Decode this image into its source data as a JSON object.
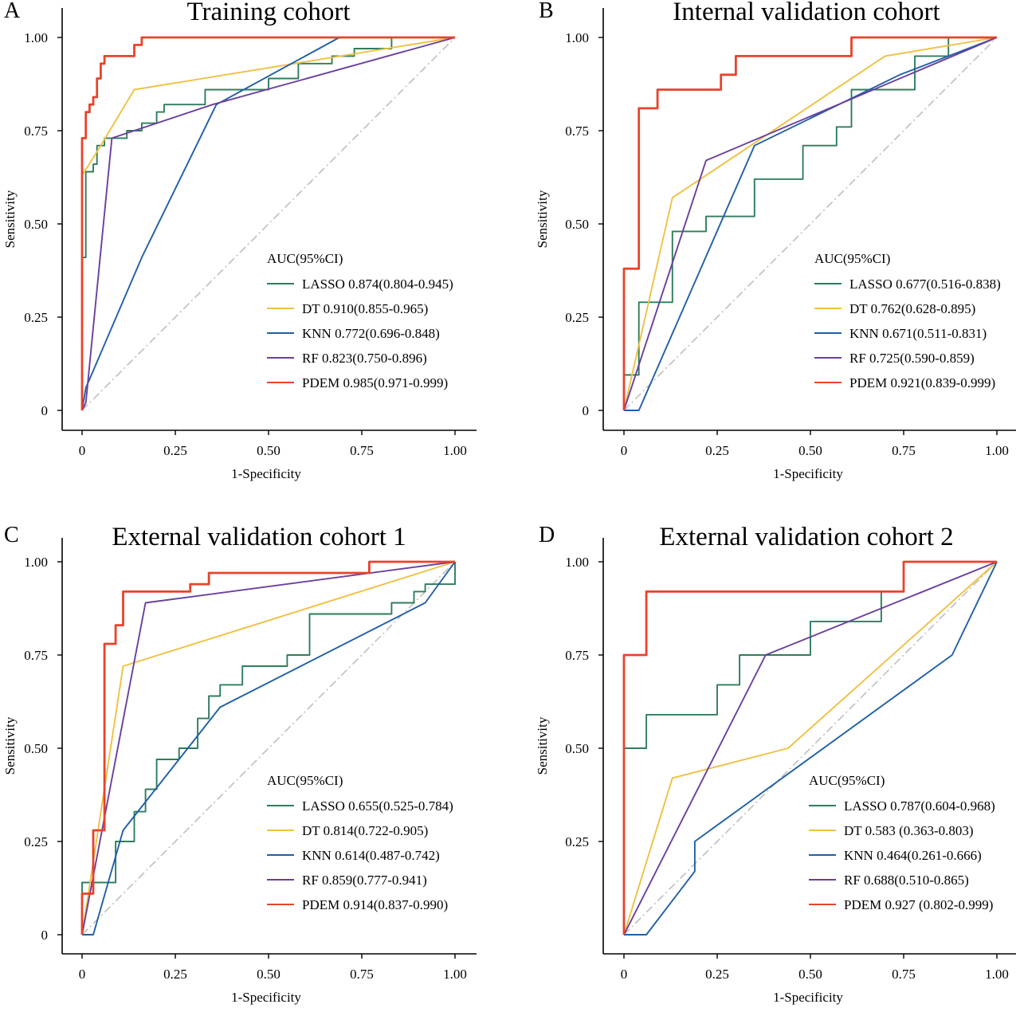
{
  "colors": {
    "LASSO": "#2e7d5b",
    "DT": "#f0c040",
    "KNN": "#1f5fa8",
    "RF": "#6a3fa0",
    "PDEM": "#e8432a",
    "diagonal": "#bbbbbb"
  },
  "chart_data": [
    {
      "type": "line",
      "panel_letter": "A",
      "title": "Training cohort",
      "xlabel": "1-Specificity",
      "ylabel": "Sensitivity",
      "xlim": [
        0,
        1
      ],
      "ylim": [
        0,
        1
      ],
      "x_ticks": [
        "0",
        "0.25",
        "0.50",
        "0.75",
        "1.00"
      ],
      "y_ticks": [
        "0",
        "0.25",
        "0.50",
        "0.75",
        "1.00"
      ],
      "legend_title": "AUC(95%CI)",
      "legend_position": "bottom-right",
      "diagonal": true,
      "series": [
        {
          "name": "LASSO",
          "label": "LASSO 0.874(0.804-0.945)",
          "step": true,
          "points": [
            [
              0,
              0
            ],
            [
              0,
              0.41
            ],
            [
              0.01,
              0.41
            ],
            [
              0.01,
              0.64
            ],
            [
              0.03,
              0.64
            ],
            [
              0.03,
              0.66
            ],
            [
              0.04,
              0.66
            ],
            [
              0.04,
              0.71
            ],
            [
              0.06,
              0.71
            ],
            [
              0.06,
              0.73
            ],
            [
              0.12,
              0.73
            ],
            [
              0.12,
              0.75
            ],
            [
              0.16,
              0.75
            ],
            [
              0.16,
              0.77
            ],
            [
              0.2,
              0.77
            ],
            [
              0.2,
              0.8
            ],
            [
              0.22,
              0.8
            ],
            [
              0.22,
              0.82
            ],
            [
              0.33,
              0.82
            ],
            [
              0.33,
              0.86
            ],
            [
              0.5,
              0.86
            ],
            [
              0.5,
              0.89
            ],
            [
              0.58,
              0.89
            ],
            [
              0.58,
              0.93
            ],
            [
              0.67,
              0.93
            ],
            [
              0.67,
              0.95
            ],
            [
              0.73,
              0.95
            ],
            [
              0.73,
              0.97
            ],
            [
              0.83,
              0.97
            ],
            [
              0.83,
              1.0
            ],
            [
              1.0,
              1.0
            ]
          ]
        },
        {
          "name": "DT",
          "label": "DT 0.910(0.855-0.965)",
          "step": false,
          "points": [
            [
              0,
              0
            ],
            [
              0,
              0.63
            ],
            [
              0.05,
              0.71
            ],
            [
              0.14,
              0.86
            ],
            [
              1.0,
              1.0
            ]
          ]
        },
        {
          "name": "KNN",
          "label": "KNN 0.772(0.696-0.848)",
          "step": false,
          "points": [
            [
              0,
              0
            ],
            [
              0.01,
              0.06
            ],
            [
              0.16,
              0.41
            ],
            [
              0.36,
              0.82
            ],
            [
              0.69,
              1.0
            ],
            [
              1.0,
              1.0
            ]
          ]
        },
        {
          "name": "RF",
          "label": "RF 0.823(0.750-0.896)",
          "step": false,
          "points": [
            [
              0,
              0
            ],
            [
              0.01,
              0.02
            ],
            [
              0.08,
              0.73
            ],
            [
              0.35,
              0.82
            ],
            [
              1.0,
              1.0
            ]
          ]
        },
        {
          "name": "PDEM",
          "label": "PDEM 0.985(0.971-0.999)",
          "step": true,
          "points": [
            [
              0,
              0
            ],
            [
              0,
              0.73
            ],
            [
              0.01,
              0.73
            ],
            [
              0.01,
              0.8
            ],
            [
              0.02,
              0.8
            ],
            [
              0.02,
              0.82
            ],
            [
              0.03,
              0.82
            ],
            [
              0.03,
              0.84
            ],
            [
              0.04,
              0.84
            ],
            [
              0.04,
              0.89
            ],
            [
              0.05,
              0.89
            ],
            [
              0.05,
              0.93
            ],
            [
              0.06,
              0.93
            ],
            [
              0.06,
              0.95
            ],
            [
              0.14,
              0.95
            ],
            [
              0.14,
              0.98
            ],
            [
              0.16,
              0.98
            ],
            [
              0.16,
              1.0
            ],
            [
              1.0,
              1.0
            ]
          ]
        }
      ]
    },
    {
      "type": "line",
      "panel_letter": "B",
      "title": "Internal validation cohort",
      "xlabel": "1-Specificity",
      "ylabel": "Sensitivity",
      "xlim": [
        0,
        1
      ],
      "ylim": [
        0,
        1
      ],
      "x_ticks": [
        "0",
        "0.25",
        "0.50",
        "0.75",
        "1.00"
      ],
      "y_ticks": [
        "0",
        "0.25",
        "0.50",
        "0.75",
        "1.00"
      ],
      "legend_title": "AUC(95%CI)",
      "legend_position": "bottom-right",
      "diagonal": true,
      "series": [
        {
          "name": "LASSO",
          "label": "LASSO 0.677(0.516-0.838)",
          "step": true,
          "points": [
            [
              0,
              0
            ],
            [
              0,
              0.095
            ],
            [
              0.04,
              0.095
            ],
            [
              0.04,
              0.29
            ],
            [
              0.13,
              0.29
            ],
            [
              0.13,
              0.48
            ],
            [
              0.22,
              0.48
            ],
            [
              0.22,
              0.52
            ],
            [
              0.35,
              0.52
            ],
            [
              0.35,
              0.62
            ],
            [
              0.48,
              0.62
            ],
            [
              0.48,
              0.71
            ],
            [
              0.57,
              0.71
            ],
            [
              0.57,
              0.76
            ],
            [
              0.61,
              0.76
            ],
            [
              0.61,
              0.86
            ],
            [
              0.78,
              0.86
            ],
            [
              0.78,
              0.95
            ],
            [
              0.87,
              0.95
            ],
            [
              0.87,
              1.0
            ],
            [
              1.0,
              1.0
            ]
          ]
        },
        {
          "name": "DT",
          "label": "DT 0.762(0.628-0.895)",
          "step": false,
          "points": [
            [
              0,
              0
            ],
            [
              0.13,
              0.57
            ],
            [
              0.7,
              0.95
            ],
            [
              1.0,
              1.0
            ]
          ]
        },
        {
          "name": "KNN",
          "label": "KNN 0.671(0.511-0.831)",
          "step": false,
          "points": [
            [
              0,
              0
            ],
            [
              0.04,
              0
            ],
            [
              0.35,
              0.71
            ],
            [
              0.74,
              0.9
            ],
            [
              1.0,
              1.0
            ]
          ]
        },
        {
          "name": "RF",
          "label": "RF 0.725(0.590-0.859)",
          "step": false,
          "points": [
            [
              0,
              0
            ],
            [
              0.22,
              0.67
            ],
            [
              1.0,
              1.0
            ]
          ]
        },
        {
          "name": "PDEM",
          "label": "PDEM 0.921(0.839-0.999)",
          "step": true,
          "points": [
            [
              0,
              0
            ],
            [
              0,
              0.38
            ],
            [
              0.04,
              0.38
            ],
            [
              0.04,
              0.81
            ],
            [
              0.09,
              0.81
            ],
            [
              0.09,
              0.86
            ],
            [
              0.26,
              0.86
            ],
            [
              0.26,
              0.9
            ],
            [
              0.3,
              0.9
            ],
            [
              0.3,
              0.95
            ],
            [
              0.61,
              0.95
            ],
            [
              0.61,
              1.0
            ],
            [
              1.0,
              1.0
            ]
          ]
        }
      ]
    },
    {
      "type": "line",
      "panel_letter": "C",
      "title": "External validation cohort 1",
      "xlabel": "1-Specificity",
      "ylabel": "Sensitivity",
      "xlim": [
        0,
        1
      ],
      "ylim": [
        0,
        1
      ],
      "x_ticks": [
        "0",
        "0.25",
        "0.50",
        "0.75",
        "1.00"
      ],
      "y_ticks": [
        "0",
        "0.25",
        "0.50",
        "0.75",
        "1.00"
      ],
      "legend_title": "AUC(95%CI)",
      "legend_position": "bottom-right",
      "diagonal": true,
      "series": [
        {
          "name": "LASSO",
          "label": "LASSO 0.655(0.525-0.784)",
          "step": true,
          "points": [
            [
              0,
              0
            ],
            [
              0,
              0.14
            ],
            [
              0.09,
              0.14
            ],
            [
              0.09,
              0.25
            ],
            [
              0.14,
              0.25
            ],
            [
              0.14,
              0.33
            ],
            [
              0.17,
              0.33
            ],
            [
              0.17,
              0.39
            ],
            [
              0.2,
              0.39
            ],
            [
              0.2,
              0.47
            ],
            [
              0.26,
              0.47
            ],
            [
              0.26,
              0.5
            ],
            [
              0.31,
              0.5
            ],
            [
              0.31,
              0.58
            ],
            [
              0.34,
              0.58
            ],
            [
              0.34,
              0.64
            ],
            [
              0.37,
              0.64
            ],
            [
              0.37,
              0.67
            ],
            [
              0.43,
              0.67
            ],
            [
              0.43,
              0.72
            ],
            [
              0.55,
              0.72
            ],
            [
              0.55,
              0.75
            ],
            [
              0.61,
              0.75
            ],
            [
              0.61,
              0.86
            ],
            [
              0.83,
              0.86
            ],
            [
              0.83,
              0.89
            ],
            [
              0.89,
              0.89
            ],
            [
              0.89,
              0.92
            ],
            [
              0.92,
              0.92
            ],
            [
              0.92,
              0.94
            ],
            [
              1.0,
              0.94
            ],
            [
              1.0,
              1.0
            ]
          ]
        },
        {
          "name": "DT",
          "label": "DT 0.814(0.722-0.905)",
          "step": false,
          "points": [
            [
              0,
              0
            ],
            [
              0.11,
              0.72
            ],
            [
              1.0,
              1.0
            ]
          ]
        },
        {
          "name": "KNN",
          "label": "KNN 0.614(0.487-0.742)",
          "step": false,
          "points": [
            [
              0,
              0
            ],
            [
              0.03,
              0
            ],
            [
              0.11,
              0.28
            ],
            [
              0.37,
              0.61
            ],
            [
              0.92,
              0.89
            ],
            [
              1.0,
              1.0
            ]
          ]
        },
        {
          "name": "RF",
          "label": "RF 0.859(0.777-0.941)",
          "step": false,
          "points": [
            [
              0,
              0
            ],
            [
              0.17,
              0.89
            ],
            [
              1.0,
              1.0
            ]
          ]
        },
        {
          "name": "PDEM",
          "label": "PDEM  0.914(0.837-0.990)",
          "step": true,
          "points": [
            [
              0,
              0
            ],
            [
              0,
              0.11
            ],
            [
              0.03,
              0.11
            ],
            [
              0.03,
              0.28
            ],
            [
              0.06,
              0.28
            ],
            [
              0.06,
              0.78
            ],
            [
              0.09,
              0.78
            ],
            [
              0.09,
              0.83
            ],
            [
              0.11,
              0.83
            ],
            [
              0.11,
              0.92
            ],
            [
              0.29,
              0.92
            ],
            [
              0.29,
              0.94
            ],
            [
              0.34,
              0.94
            ],
            [
              0.34,
              0.97
            ],
            [
              0.77,
              0.97
            ],
            [
              0.77,
              1.0
            ],
            [
              1.0,
              1.0
            ]
          ]
        }
      ]
    },
    {
      "type": "line",
      "panel_letter": "D",
      "title": "External validation cohort 2",
      "xlabel": "1-Specificity",
      "ylabel": "Sensitivity",
      "xlim": [
        0,
        1
      ],
      "ylim": [
        0,
        1
      ],
      "x_ticks": [
        "0",
        "0.25",
        "0.50",
        "0.75",
        "1.00"
      ],
      "y_ticks": [
        "0.25",
        "0.50",
        "0.75",
        "1.00"
      ],
      "legend_title": "AUC(95%CI)",
      "legend_position": "bottom-right",
      "diagonal": true,
      "series": [
        {
          "name": "LASSO",
          "label": "LASSO 0.787(0.604-0.968)",
          "step": true,
          "points": [
            [
              0,
              0
            ],
            [
              0,
              0.5
            ],
            [
              0.06,
              0.5
            ],
            [
              0.06,
              0.59
            ],
            [
              0.25,
              0.59
            ],
            [
              0.25,
              0.67
            ],
            [
              0.31,
              0.67
            ],
            [
              0.31,
              0.75
            ],
            [
              0.5,
              0.75
            ],
            [
              0.5,
              0.84
            ],
            [
              0.69,
              0.84
            ],
            [
              0.69,
              0.92
            ],
            [
              0.75,
              0.92
            ],
            [
              0.75,
              1.0
            ],
            [
              1.0,
              1.0
            ]
          ]
        },
        {
          "name": "DT",
          "label": "DT 0.583 (0.363-0.803)",
          "step": false,
          "points": [
            [
              0,
              0
            ],
            [
              0.13,
              0.42
            ],
            [
              0.44,
              0.5
            ],
            [
              1.0,
              1.0
            ]
          ]
        },
        {
          "name": "KNN",
          "label": "KNN 0.464(0.261-0.666)",
          "step": false,
          "points": [
            [
              0,
              0
            ],
            [
              0.06,
              0
            ],
            [
              0.19,
              0.17
            ],
            [
              0.19,
              0.25
            ],
            [
              0.88,
              0.75
            ],
            [
              1.0,
              1.0
            ]
          ]
        },
        {
          "name": "RF",
          "label": "RF 0.688(0.510-0.865)",
          "step": false,
          "points": [
            [
              0,
              0
            ],
            [
              0.38,
              0.75
            ],
            [
              1.0,
              1.0
            ]
          ]
        },
        {
          "name": "PDEM",
          "label": "PDEM  0.927 (0.802-0.999)",
          "step": true,
          "points": [
            [
              0,
              0
            ],
            [
              0,
              0.75
            ],
            [
              0.06,
              0.75
            ],
            [
              0.06,
              0.92
            ],
            [
              0.75,
              0.92
            ],
            [
              0.75,
              1.0
            ],
            [
              1.0,
              1.0
            ]
          ]
        }
      ]
    }
  ]
}
